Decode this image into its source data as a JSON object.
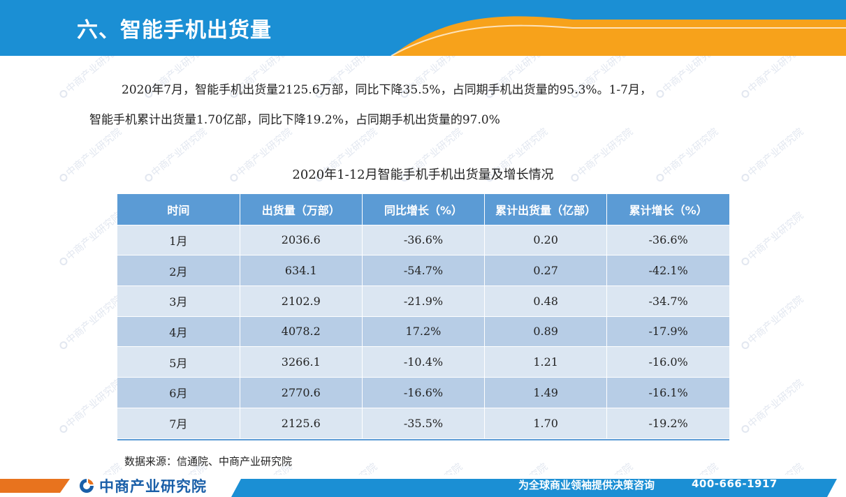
{
  "header": {
    "title": "六、智能手机出货量"
  },
  "paragraph": {
    "line1": "2020年7月，智能手机出货量2125.6万部，同比下降35.5%，占同期手机出货量的95.3%。1-7月，",
    "line2": "智能手机累计出货量1.70亿部，同比下降19.2%，占同期手机出货量的97.0%"
  },
  "table": {
    "title": "2020年1-12月智能手机手机出货量及增长情况",
    "columns": [
      "时间",
      "出货量（万部）",
      "同比增长（%）",
      "累计出货量（亿部）",
      "累计增长（%）"
    ],
    "rows": [
      [
        "1月",
        "2036.6",
        "-36.6%",
        "0.20",
        "-36.6%"
      ],
      [
        "2月",
        "634.1",
        "-54.7%",
        "0.27",
        "-42.1%"
      ],
      [
        "3月",
        "2102.9",
        "-21.9%",
        "0.48",
        "-34.7%"
      ],
      [
        "4月",
        "4078.2",
        "17.2%",
        "0.89",
        "-17.9%"
      ],
      [
        "5月",
        "3266.1",
        "-10.4%",
        "1.21",
        "-16.0%"
      ],
      [
        "6月",
        "2770.6",
        "-16.6%",
        "1.49",
        "-16.1%"
      ],
      [
        "7月",
        "2125.6",
        "-35.5%",
        "1.70",
        "-19.2%"
      ]
    ]
  },
  "source": "数据来源：信通院、中商产业研究院",
  "watermark": "中商产业研究院",
  "footer": {
    "logo_text": "中商产业研究院",
    "slogan": "为全球商业领袖提供决策咨询",
    "phone": "400-666-1917"
  },
  "colors": {
    "header_blue": "#1b8fd4",
    "header_orange": "#f7a21b",
    "table_header": "#5b9bd5",
    "row_light": "#dbe6f2",
    "row_dark": "#b7cde6",
    "footer_orange": "#e8731e",
    "footer_blue": "#1b8fd4",
    "logo_blue": "#1a5fa8"
  },
  "icons": {
    "logo": "company-logo-icon"
  }
}
